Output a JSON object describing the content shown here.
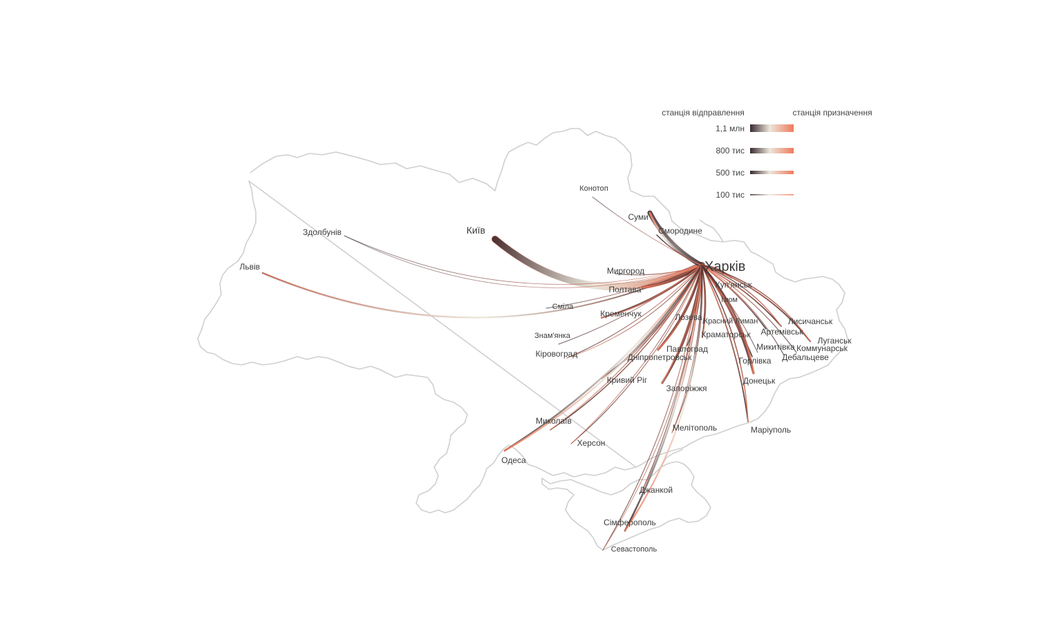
{
  "legend": {
    "departure_label": "станція відправлення",
    "arrival_label": "станція призначення",
    "items": [
      {
        "label": "1,1 млн",
        "value": 1100000
      },
      {
        "label": "800 тис",
        "value": 800000
      },
      {
        "label": "500 тис",
        "value": 500000
      },
      {
        "label": "100 тис",
        "value": 100000
      }
    ]
  },
  "colors": {
    "departure": "#3b2a30",
    "middle": "#ece7dc",
    "arrival": "#f07a5c",
    "border": "#cfcfcf",
    "label": "#3c3c3c"
  },
  "hub": {
    "name": "Харків"
  },
  "cities": [
    {
      "key": "kyiv",
      "name": "Київ"
    },
    {
      "key": "lviv",
      "name": "Львів"
    },
    {
      "key": "zdolbuniv",
      "name": "Здолбунів"
    },
    {
      "key": "konotop",
      "name": "Конотоп"
    },
    {
      "key": "sumy",
      "name": "Суми"
    },
    {
      "key": "smorodyne",
      "name": "Смородине"
    },
    {
      "key": "myrhorod",
      "name": "Миргород"
    },
    {
      "key": "poltava",
      "name": "Полтава"
    },
    {
      "key": "smila",
      "name": "Сміла"
    },
    {
      "key": "kremenchuk",
      "name": "Кременчук"
    },
    {
      "key": "znamianka",
      "name": "Знам'янка"
    },
    {
      "key": "kirovohrad",
      "name": "Кіровоград"
    },
    {
      "key": "kupiansk",
      "name": "Куп'янськ"
    },
    {
      "key": "izium",
      "name": "Ізюм"
    },
    {
      "key": "lozova",
      "name": "Лозова"
    },
    {
      "key": "krasnyi_lyman",
      "name": "Красний Лиман"
    },
    {
      "key": "kramatorsk",
      "name": "Краматорськ"
    },
    {
      "key": "pavlohrad",
      "name": "Павлоград"
    },
    {
      "key": "dnipro",
      "name": "Дніпропетровськ"
    },
    {
      "key": "kryvyi_rih",
      "name": "Кривий Ріг"
    },
    {
      "key": "zaporizhzhia",
      "name": "Запоріжжя"
    },
    {
      "key": "lysychansk",
      "name": "Лисичанськ"
    },
    {
      "key": "artemivsk",
      "name": "Артемівськ"
    },
    {
      "key": "luhansk",
      "name": "Луганськ"
    },
    {
      "key": "mykytivka",
      "name": "Микитівка"
    },
    {
      "key": "kommunarsk",
      "name": "Коммунарськ"
    },
    {
      "key": "debaltseve",
      "name": "Дебальцеве"
    },
    {
      "key": "horlivka",
      "name": "Горлівка"
    },
    {
      "key": "donetsk",
      "name": "Донецьк"
    },
    {
      "key": "mariupol",
      "name": "Маріуполь"
    },
    {
      "key": "melitopol",
      "name": "Мелітополь"
    },
    {
      "key": "mykolaiv",
      "name": "Миколаїв"
    },
    {
      "key": "kherson",
      "name": "Херсон"
    },
    {
      "key": "odesa",
      "name": "Одеса"
    },
    {
      "key": "dzhankoi",
      "name": "Джанкой"
    },
    {
      "key": "simferopol",
      "name": "Сімферополь"
    },
    {
      "key": "sevastopol",
      "name": "Севастополь"
    }
  ]
}
